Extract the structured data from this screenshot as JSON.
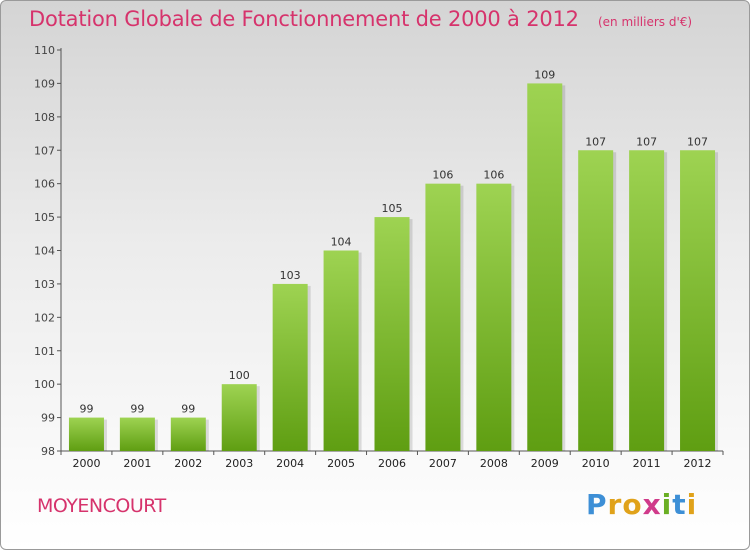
{
  "chart_data": {
    "type": "bar",
    "title": "Dotation Globale de Fonctionnement de 2000 à 2012",
    "subtitle": "(en milliers d'€)",
    "categories": [
      "2000",
      "2001",
      "2002",
      "2003",
      "2004",
      "2005",
      "2006",
      "2007",
      "2008",
      "2009",
      "2010",
      "2011",
      "2012"
    ],
    "values": [
      99,
      99,
      99,
      100,
      103,
      104,
      105,
      106,
      106,
      109,
      107,
      107,
      107
    ],
    "ylim": [
      98,
      110
    ],
    "yticks": [
      98,
      99,
      100,
      101,
      102,
      103,
      104,
      105,
      106,
      107,
      108,
      109,
      110
    ],
    "xlabel": "",
    "ylabel": "",
    "grid": false,
    "bar_color": "#7fbf2f"
  },
  "footer": {
    "commune": "MOYENCOURT",
    "logo_letters": [
      "P",
      "r",
      "o",
      "x",
      "i",
      "t",
      "i"
    ],
    "logo_colors": [
      "#3d8fd6",
      "#e0a21a",
      "#e0a21a",
      "#d03a8a",
      "#6aaf24",
      "#3d8fd6",
      "#e0a21a"
    ]
  }
}
